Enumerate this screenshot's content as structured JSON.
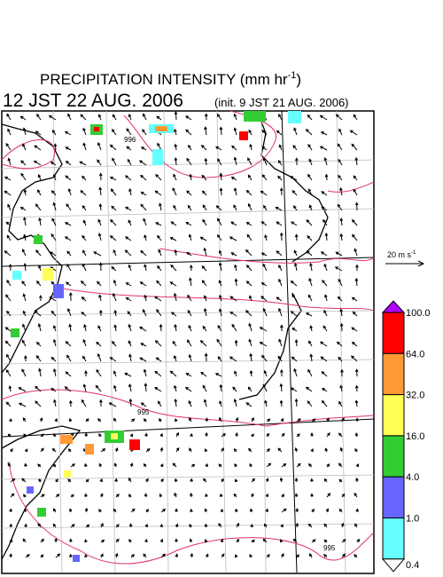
{
  "header": {
    "title": "PRECIPITATION INTENSITY (mm hr",
    "title_exponent": "-1",
    "title_close": ")",
    "valid_time": "12 JST 22 AUG. 2006",
    "init_time": "(init. 9 JST 21 AUG. 2006)"
  },
  "wind_scale": {
    "label": "20 m s",
    "label_exponent": "-1"
  },
  "colorbar": {
    "levels": [
      {
        "label": "100.0",
        "color": "#ff0000"
      },
      {
        "label": "64.0",
        "color": "#ff9933"
      },
      {
        "label": "32.0",
        "color": "#ffff55"
      },
      {
        "label": "16.0",
        "color": "#33cc33"
      },
      {
        "label": "4.0",
        "color": "#6666ff"
      },
      {
        "label": "1.0",
        "color": "#66ffff"
      },
      {
        "label": "0.4",
        "color": "#ffffff"
      }
    ],
    "over_color": "#b000ff"
  },
  "contour_labels": [
    "996",
    "995",
    "995"
  ]
}
